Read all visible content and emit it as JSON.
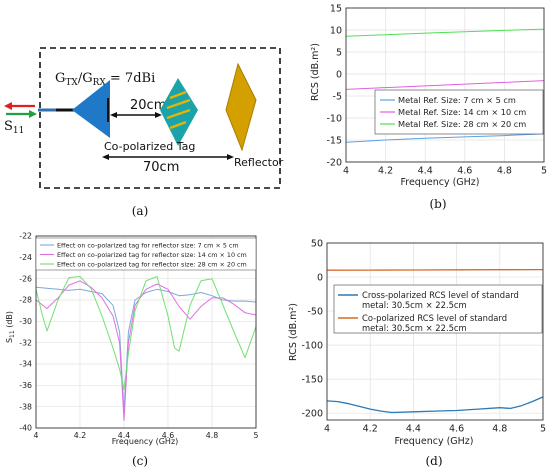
{
  "panel_labels": {
    "a": "(a)",
    "b": "(b)",
    "c": "(c)",
    "d": "(d)"
  },
  "panel_a": {
    "gain_label": "GTX/GRX = 7dBi",
    "gain_prefix": "G",
    "gain_sub1": "TX",
    "gain_mid": "/G",
    "gain_sub2": "RX",
    "gain_value": " = 7dBi",
    "port_label_main": "S",
    "port_label_sub": "11",
    "dist_tag": "20cm",
    "dist_reflector": "70cm",
    "tag_label": "Co-polarized Tag",
    "reflector_label": "Reflector",
    "colors": {
      "antenna": "#1f78c8",
      "tag": "#1aa3a8",
      "tag_slot": "#e8b400",
      "reflector": "#d4a000",
      "tx_arrow": "#e02020",
      "rx_arrow": "#20a040"
    }
  },
  "chart_data": [
    {
      "id": "b",
      "type": "line",
      "xlabel": "Frequency (GHz)",
      "ylabel": "RCS (dB.m²)",
      "xlim": [
        4,
        5
      ],
      "ylim": [
        -20,
        15
      ],
      "xticks": [
        4,
        4.2,
        4.4,
        4.6,
        4.8,
        5
      ],
      "xtick_labels": [
        "4",
        "4.2",
        "4.4",
        "4.6",
        "4.8",
        "5"
      ],
      "yticks": [
        -20,
        -15,
        -10,
        -5,
        0,
        5,
        10,
        15
      ],
      "ytick_labels": [
        "-20",
        "-15",
        "-10",
        "-5",
        "0",
        "5",
        "10",
        "15"
      ],
      "grid": true,
      "legend_position": "center-right",
      "series": [
        {
          "name": "Metal Ref. Size: 7 cm × 5 cm",
          "color": "#5aa0e6",
          "x": [
            4,
            4.2,
            4.4,
            4.6,
            4.8,
            5
          ],
          "y": [
            -15.5,
            -15.0,
            -14.6,
            -14.3,
            -14.0,
            -13.6
          ]
        },
        {
          "name": "Metal Ref. Size: 14 cm × 10 cm",
          "color": "#e060e0",
          "x": [
            4,
            4.2,
            4.4,
            4.6,
            4.8,
            5
          ],
          "y": [
            -3.5,
            -3.1,
            -2.7,
            -2.3,
            -1.9,
            -1.5
          ]
        },
        {
          "name": "Metal Ref. Size: 28 cm × 20 cm",
          "color": "#50e050",
          "x": [
            4,
            4.2,
            4.4,
            4.6,
            4.8,
            5
          ],
          "y": [
            8.6,
            8.9,
            9.3,
            9.6,
            9.9,
            10.2
          ]
        }
      ]
    },
    {
      "id": "c",
      "type": "line",
      "xlabel": "Frequency (GHz)",
      "ylabel": "S11 (dB)",
      "ylabel_main": "S",
      "ylabel_sub": "11",
      "ylabel_unit": " (dB)",
      "xlim": [
        4,
        5
      ],
      "ylim": [
        -40,
        -22
      ],
      "xticks": [
        4,
        4.2,
        4.4,
        4.6,
        4.8,
        5
      ],
      "xtick_labels": [
        "4",
        "4.2",
        "4.4",
        "4.6",
        "4.8",
        "5"
      ],
      "yticks": [
        -40,
        -38,
        -36,
        -34,
        -32,
        -30,
        -28,
        -26,
        -24,
        -22
      ],
      "ytick_labels": [
        "-40",
        "-38",
        "-36",
        "-34",
        "-32",
        "-30",
        "-28",
        "-26",
        "-24",
        "-22"
      ],
      "grid": true,
      "legend_position": "top",
      "series": [
        {
          "name": "Effect on co-polarized tag for reflector size: 7 cm × 5 cm",
          "color": "#7aa8e0",
          "x": [
            4,
            4.05,
            4.1,
            4.15,
            4.2,
            4.25,
            4.3,
            4.35,
            4.38,
            4.4,
            4.42,
            4.45,
            4.5,
            4.55,
            4.6,
            4.65,
            4.7,
            4.75,
            4.8,
            4.85,
            4.9,
            4.95,
            5
          ],
          "y": [
            -26.8,
            -26.9,
            -27.0,
            -27.1,
            -27.0,
            -27.2,
            -27.4,
            -28.5,
            -31.0,
            -38.5,
            -31.0,
            -28.0,
            -27.3,
            -27.0,
            -27.2,
            -27.6,
            -27.5,
            -27.3,
            -27.6,
            -28.0,
            -28.1,
            -28.1,
            -28.2
          ]
        },
        {
          "name": "Effect on co-polarized tag for reflector size: 14 cm × 10 cm",
          "color": "#e070e0",
          "x": [
            4,
            4.05,
            4.1,
            4.15,
            4.2,
            4.25,
            4.3,
            4.35,
            4.38,
            4.4,
            4.42,
            4.45,
            4.5,
            4.55,
            4.6,
            4.65,
            4.7,
            4.75,
            4.8,
            4.85,
            4.9,
            4.95,
            5
          ],
          "y": [
            -28.0,
            -28.8,
            -27.8,
            -26.6,
            -26.2,
            -26.8,
            -27.8,
            -29.5,
            -32.0,
            -39.3,
            -32.0,
            -28.5,
            -27.0,
            -26.5,
            -27.0,
            -28.6,
            -29.8,
            -28.6,
            -27.8,
            -27.8,
            -28.4,
            -29.2,
            -29.4
          ]
        },
        {
          "name": "Effect on co-polarized tag for reflector size: 28 cm × 20 cm",
          "color": "#70e070",
          "x": [
            4,
            4.03,
            4.05,
            4.1,
            4.15,
            4.2,
            4.25,
            4.3,
            4.35,
            4.38,
            4.4,
            4.42,
            4.45,
            4.5,
            4.55,
            4.6,
            4.63,
            4.65,
            4.7,
            4.75,
            4.8,
            4.85,
            4.9,
            4.95,
            5
          ],
          "y": [
            -27.0,
            -29.5,
            -30.9,
            -28.0,
            -25.9,
            -25.8,
            -26.9,
            -29.5,
            -32.5,
            -34.5,
            -36.4,
            -33.0,
            -29.0,
            -26.2,
            -25.8,
            -29.5,
            -32.5,
            -32.8,
            -28.5,
            -26.2,
            -26.0,
            -28.5,
            -31.0,
            -33.4,
            -30.5
          ]
        }
      ]
    },
    {
      "id": "d",
      "type": "line",
      "xlabel": "Frequency (GHz)",
      "ylabel": "RCS (dB.m²)",
      "xlim": [
        4,
        5
      ],
      "ylim": [
        -210,
        50
      ],
      "xticks": [
        4,
        4.2,
        4.4,
        4.6,
        4.8,
        5
      ],
      "xtick_labels": [
        "4",
        "4.2",
        "4.4",
        "4.6",
        "4.8",
        "5"
      ],
      "yticks": [
        -200,
        -150,
        -100,
        -50,
        0,
        50
      ],
      "ytick_labels": [
        "-200",
        "-150",
        "-100",
        "-50",
        "0",
        "50"
      ],
      "grid": true,
      "legend_position": "top",
      "series": [
        {
          "name": "Cross-polarized RCS level of standard metal: 30.5cm × 22.5cm",
          "name_line1": "Cross-polarized RCS level of standard",
          "name_line2": "metal: 30.5cm × 22.5cm",
          "color": "#2a7ab8",
          "x": [
            4,
            4.05,
            4.1,
            4.15,
            4.2,
            4.25,
            4.3,
            4.4,
            4.5,
            4.6,
            4.7,
            4.8,
            4.85,
            4.9,
            4.95,
            5
          ],
          "y": [
            -182,
            -183,
            -186,
            -190,
            -194,
            -197,
            -199,
            -198,
            -197,
            -196,
            -194,
            -192,
            -193,
            -189,
            -183,
            -176
          ]
        },
        {
          "name": "Co-polarized RCS level of standard metal: 30.5cm × 22.5cm",
          "name_line1": "Co-polarized RCS level of standard",
          "name_line2": "metal: 30.5cm × 22.5cm",
          "color": "#d96a2b",
          "x": [
            4,
            4.2,
            4.4,
            4.6,
            4.8,
            5
          ],
          "y": [
            10.0,
            10.2,
            10.4,
            10.6,
            10.8,
            11.0
          ]
        }
      ]
    }
  ]
}
